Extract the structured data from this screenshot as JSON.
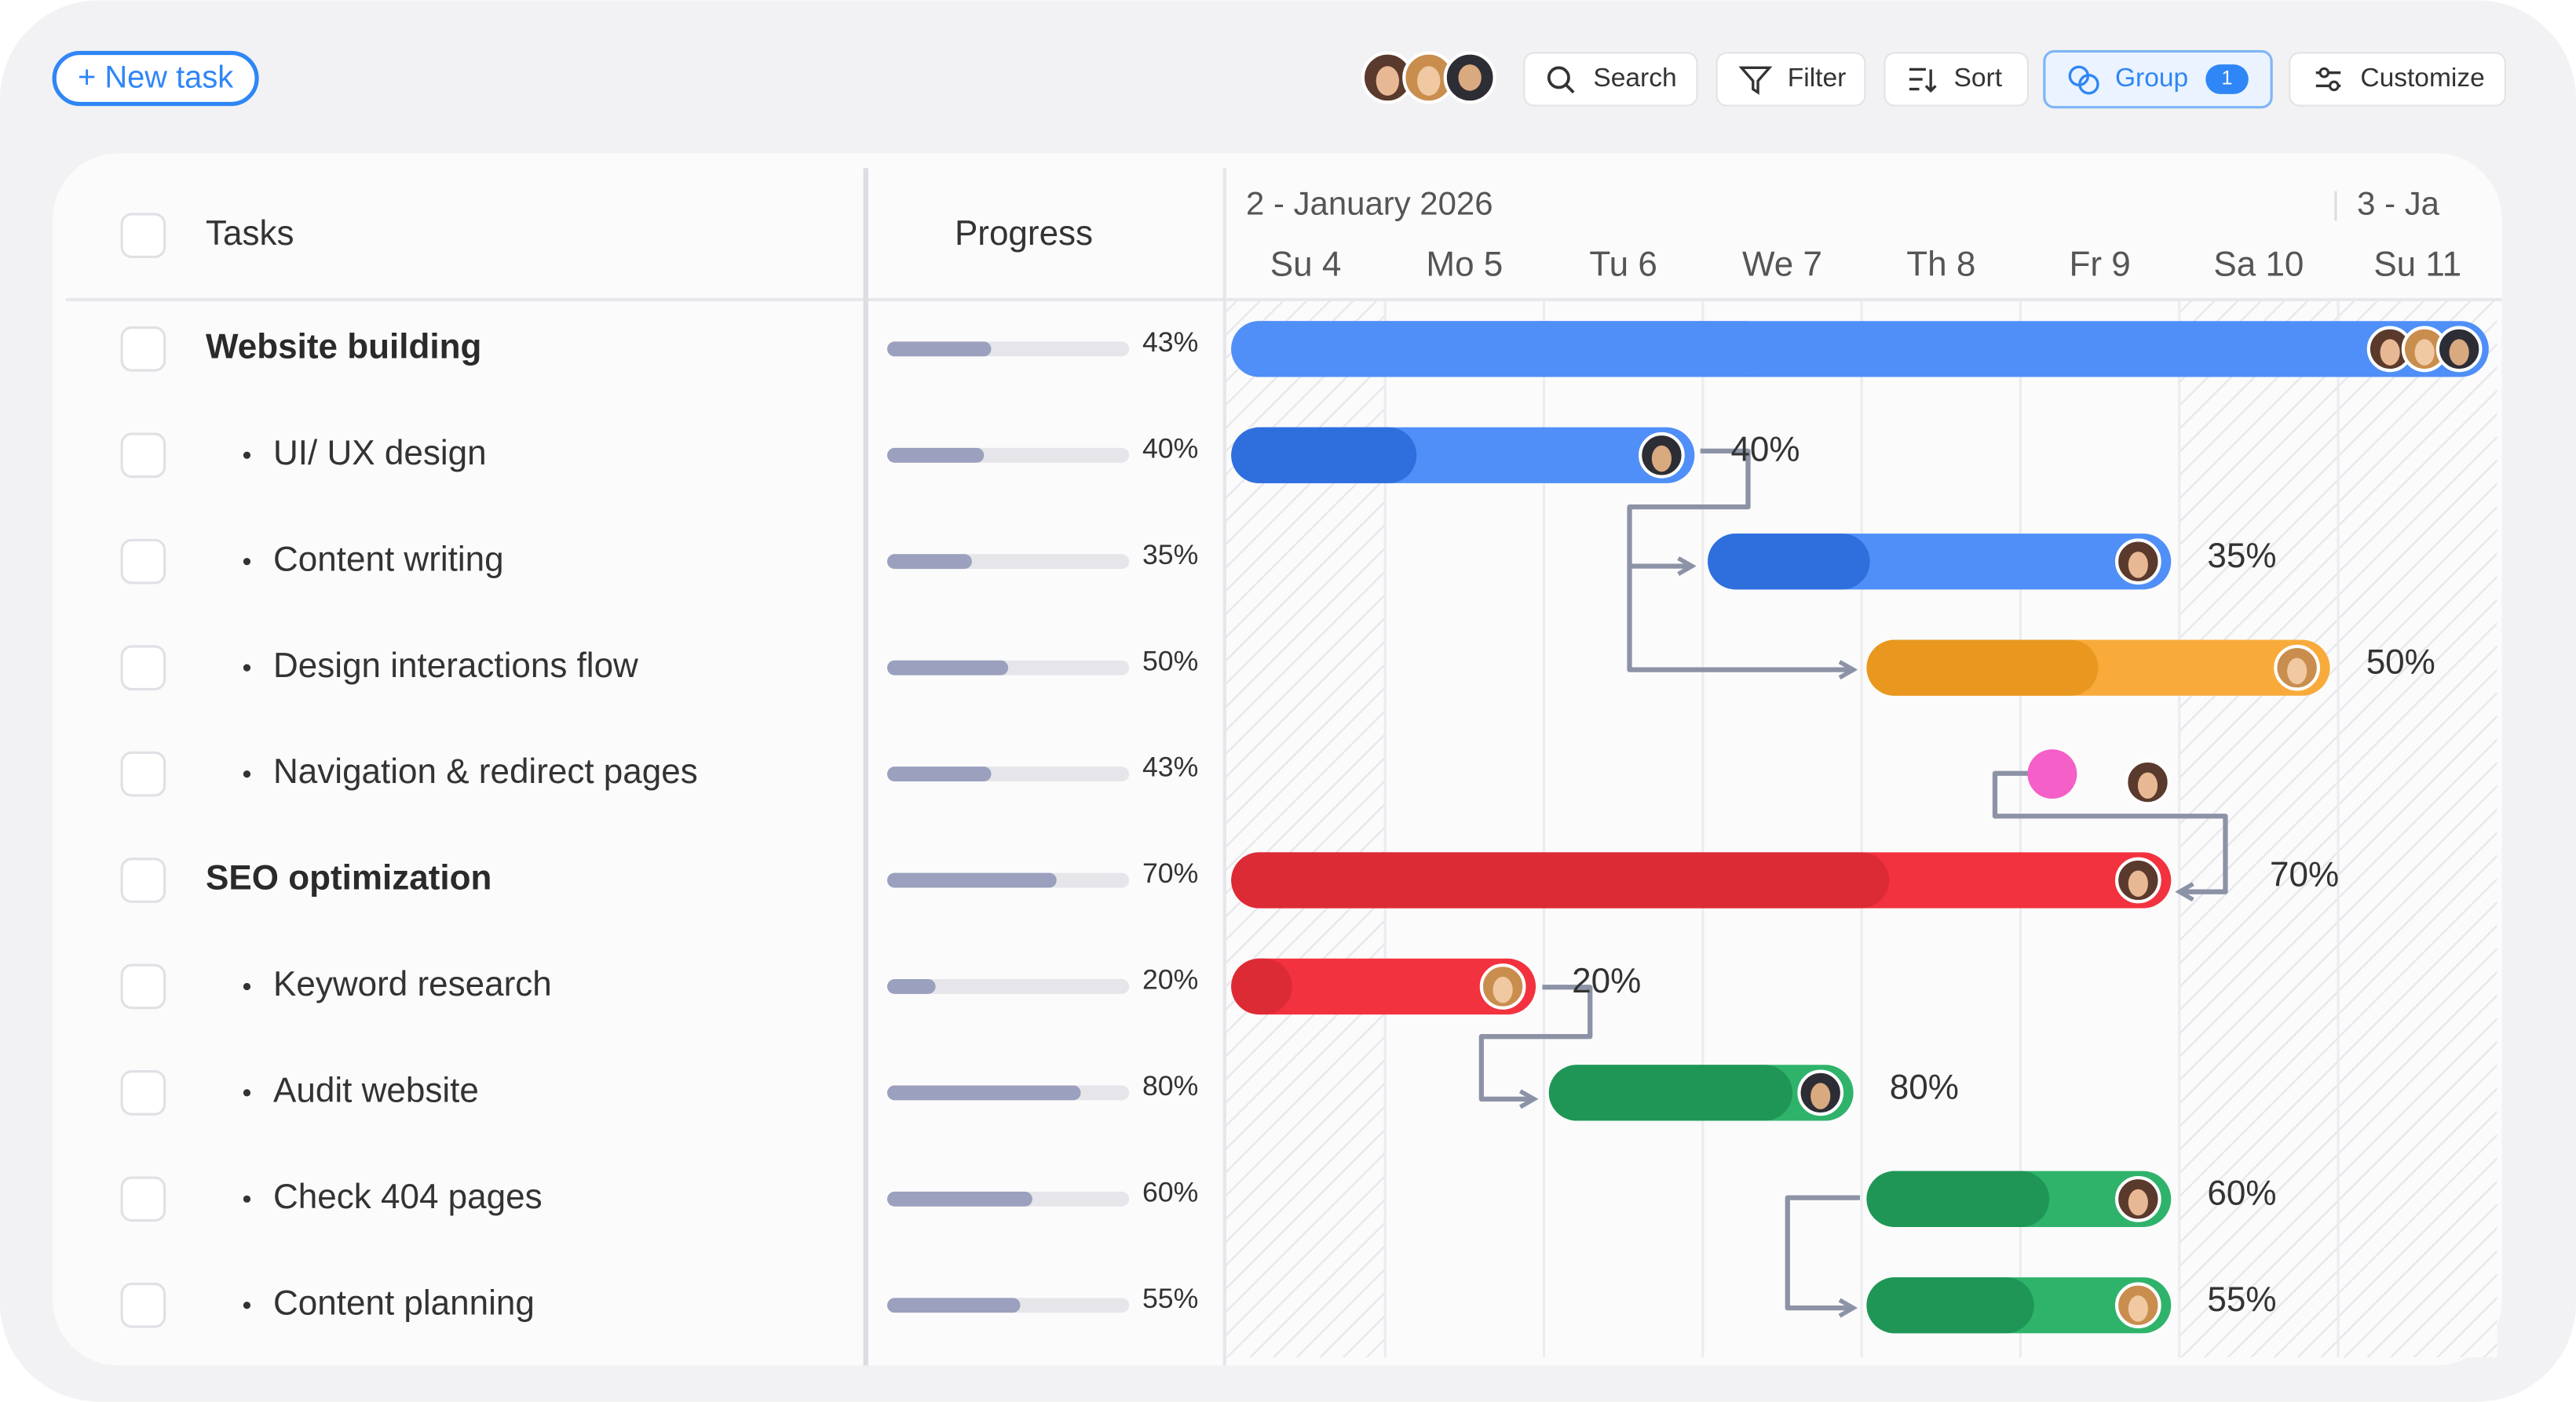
{
  "toolbar": {
    "new_task": "+ New task",
    "search": "Search",
    "filter": "Filter",
    "sort": "Sort",
    "group": "Group",
    "group_count": 1,
    "customize": "Customize"
  },
  "header": {
    "tasks": "Tasks",
    "progress": "Progress",
    "weeks": [
      "2 - January 2026",
      "3 - Ja"
    ],
    "timeline": {
      "start": 4,
      "end": 12,
      "weekend_days": [
        4,
        10,
        11
      ]
    },
    "days": [
      {
        "value": 4,
        "label": "Su 4"
      },
      {
        "value": 5,
        "label": "Mo 5"
      },
      {
        "value": 6,
        "label": "Tu 6"
      },
      {
        "value": 7,
        "label": "We 7"
      },
      {
        "value": 8,
        "label": "Th 8"
      },
      {
        "value": 9,
        "label": "Fr 9"
      },
      {
        "value": 10,
        "label": "Sa 10"
      },
      {
        "value": 11,
        "label": "Su 11"
      }
    ]
  },
  "groups": [
    {
      "name": "Website building",
      "progress": 43,
      "progress_label": "43%",
      "start": 4,
      "end": 12,
      "color": "#4f8ff7",
      "progress_color": "#4f8ff7",
      "subtasks": [
        {
          "name": "UI/ UX design",
          "progress": 40,
          "progress_label": "40%",
          "start": 4,
          "end": 7,
          "color": "#4f8ff7",
          "progress_color": "#2f6fdd"
        },
        {
          "name": "Content writing",
          "progress": 35,
          "progress_label": "35%",
          "start": 7,
          "end": 10,
          "color": "#4f8ff7",
          "progress_color": "#2f6fdd"
        },
        {
          "name": "Design interactions flow",
          "progress": 50,
          "progress_label": "50%",
          "start": 8,
          "end": 11,
          "color": "#f8ab3b",
          "progress_color": "#e9971f"
        },
        {
          "name": "Navigation & redirect pages",
          "progress": 43,
          "progress_label": "43%",
          "milestone": 9.2,
          "color": "#f55fc8"
        }
      ]
    },
    {
      "name": "SEO optimization",
      "progress": 70,
      "progress_label": "70%",
      "start": 4,
      "end": 10,
      "color": "#f2323e",
      "progress_color": "#dd2b36",
      "subtasks": [
        {
          "name": "Keyword research",
          "progress": 20,
          "progress_label": "20%",
          "start": 4,
          "end": 6,
          "color": "#f2323e",
          "progress_color": "#dd2b36"
        },
        {
          "name": "Audit website",
          "progress": 80,
          "progress_label": "80%",
          "start": 6,
          "end": 8,
          "color": "#2fb36b",
          "progress_color": "#1f9656"
        },
        {
          "name": "Check 404 pages",
          "progress": 60,
          "progress_label": "60%",
          "start": 8,
          "end": 10,
          "color": "#2fb36b",
          "progress_color": "#1f9656"
        },
        {
          "name": "Content planning",
          "progress": 55,
          "progress_label": "55%",
          "start": 8,
          "end": 10,
          "color": "#2fb36b",
          "progress_color": "#1f9656"
        }
      ]
    }
  ]
}
